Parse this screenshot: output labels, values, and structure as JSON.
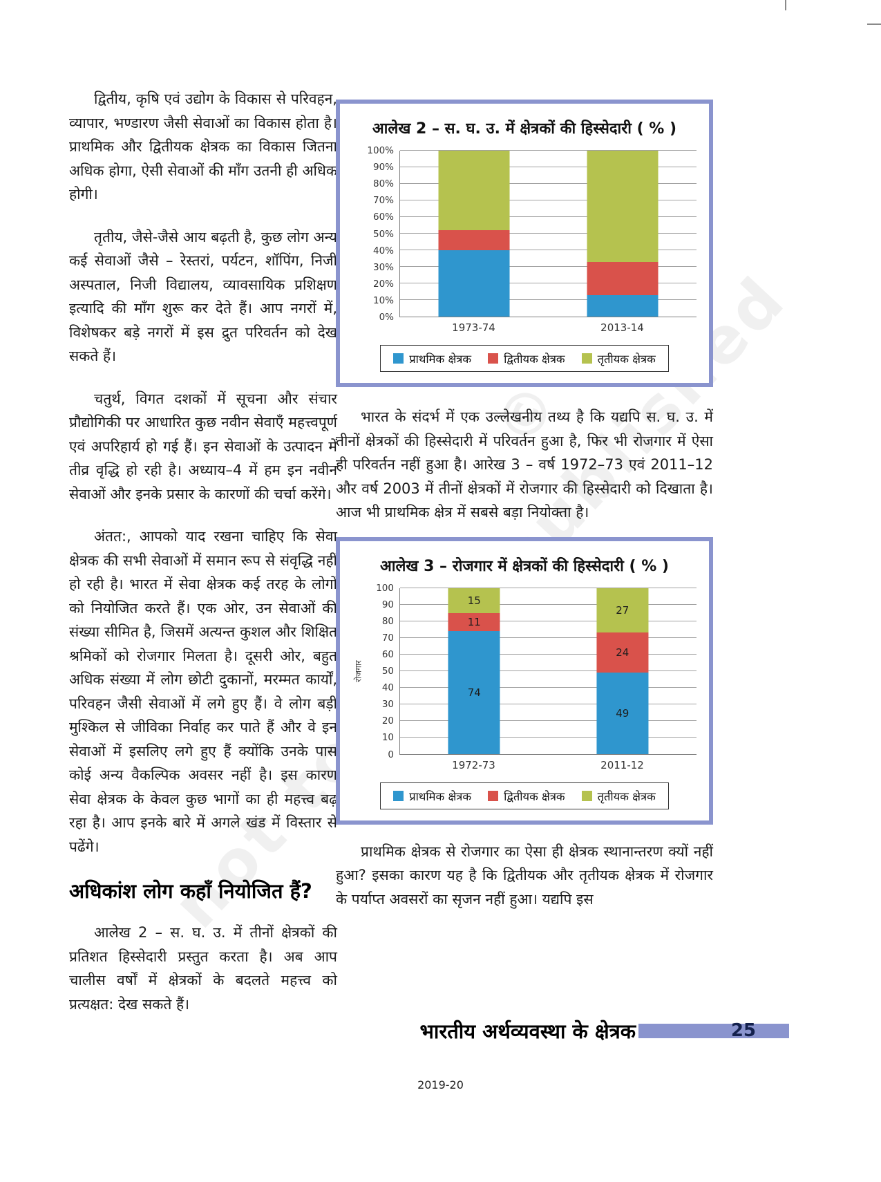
{
  "page": {
    "footer_title": "भारतीय अर्थव्यवस्था के क्षेत्रक",
    "page_number": "25",
    "year_footer": "2019-20",
    "watermark_line1": "© NCERT",
    "watermark_line2": "not to be republished"
  },
  "left_column": {
    "para1": "द्वितीय, कृषि एवं उद्योग के विकास से परिवहन, व्यापार, भण्डारण जैसी सेवाओं का विकास होता है। प्राथमिक और द्वितीयक क्षेत्रक का विकास जितना अधिक होगा, ऐसी सेवाओं की माँग उतनी ही अधिक होगी।",
    "para2": "तृतीय, जैसे-जैसे आय बढ़ती है, कुछ लोग अन्य कई सेवाओं जैसे – रेस्तरां, पर्यटन, शॉपिंग, निजी अस्पताल, निजी विद्यालय, व्यावसायिक प्रशिक्षण इत्यादि की माँग शुरू कर देते हैं। आप नगरों में, विशेषकर बड़े नगरों में इस द्रुत परिवर्तन को देख सकते हैं।",
    "para3": "चतुर्थ, विगत दशकों में सूचना और संचार प्रौद्योगिकी पर आधारित कुछ नवीन सेवाएँ महत्त्वपूर्ण एवं अपरिहार्य हो गई हैं। इन सेवाओं के उत्पादन में तीव्र वृद्धि हो रही है। अध्याय–4 में हम इन नवीन सेवाओं और इनके प्रसार के कारणों की चर्चा करेंगे।",
    "para4": "अंतत:, आपको याद रखना चाहिए कि सेवा क्षेत्रक की सभी सेवाओं में समान रूप से संवृद्धि नहीं हो रही है। भारत में सेवा क्षेत्रक कई तरह के लोगों को नियोजित करते हैं। एक ओर, उन सेवाओं की संख्या सीमित है, जिसमें अत्यन्त कुशल और शिक्षित श्रमिकों को रोजगार मिलता है। दूसरी ओर, बहुत अधिक संख्या में लोग छोटी दुकानों, मरम्मत कार्यों, परिवहन जैसी सेवाओं में लगे हुए हैं। वे लोग बड़ी मुश्किल से जीविका निर्वाह कर पाते हैं और वे इन सेवाओं में इसलिए लगे हुए हैं क्योंकि उनके पास कोई अन्य वैकल्पिक अवसर नहीं है। इस कारण सेवा क्षेत्रक के केवल कुछ भागों का ही महत्त्व बढ़ रहा है। आप इनके बारे में अगले खंड में विस्तार से पढेंगे।",
    "heading": "अधिकांश लोग कहाँ नियोजित हैं?",
    "para5": "आलेख 2 – स. घ. उ. में तीनों क्षेत्रकों की प्रतिशत हिस्सेदारी प्रस्तुत करता है। अब आप चालीस वर्षों में क्षेत्रकों के बदलते महत्त्व को प्रत्यक्षत: देख सकते हैं।"
  },
  "right_column": {
    "para_between": "भारत के संदर्भ में एक उल्लेखनीय तथ्य है कि यद्यपि स. घ. उ. में तीनों क्षेत्रकों की हिस्सेदारी में परिवर्तन हुआ है, फिर भी रोजगार में ऐसा ही परिवर्तन नहीं हुआ है। आरेख 3 – वर्ष 1972–73 एवं 2011–12 और वर्ष 2003 में तीनों क्षेत्रकों में रोजगार की हिस्सेदारी को दिखाता है। आज भी प्राथमिक क्षेत्र में सबसे बड़ा नियोक्ता है।",
    "para_bottom": "प्राथमिक क्षेत्रक से रोजगार का ऐसा ही क्षेत्रक स्थानान्तरण क्यों नहीं हुआ? इसका कारण यह है कि द्वितीयक और तृतीयक क्षेत्रक में रोजगार के पर्याप्त अवसरों का सृजन नहीं हुआ। यद्यपि इस"
  },
  "colors": {
    "primary_blue": "#2f96ce",
    "secondary_red": "#d9524b",
    "tertiary_green": "#b5c24f",
    "chart_border": "#8a94ce",
    "footer_bar": "#8a94ce",
    "gridline": "#a0a0a0"
  },
  "chart_data": [
    {
      "type": "bar",
      "stacked": true,
      "title": "आलेख 2 –  स. घ. उ. में क्षेत्रकों की हिस्सेदारी ( % )",
      "categories": [
        "1973-74",
        "2013-14"
      ],
      "series": [
        {
          "name": "प्राथमिक क्षेत्रक",
          "color": "#2f96ce",
          "values": [
            40,
            13
          ]
        },
        {
          "name": "द्वितीयक क्षेत्रक",
          "color": "#d9524b",
          "values": [
            12,
            20
          ]
        },
        {
          "name": "तृतीयक क्षेत्रक",
          "color": "#b5c24f",
          "values": [
            48,
            67
          ]
        }
      ],
      "xlabel": "",
      "ylabel": "",
      "ylim": [
        0,
        100
      ],
      "ytick_step": 10,
      "ytick_suffix": "%",
      "show_value_labels": false,
      "grid": true,
      "legend_position": "bottom"
    },
    {
      "type": "bar",
      "stacked": true,
      "title": "आलेख 3 –  रोजगार में क्षेत्रकों की हिस्सेदारी ( % )",
      "categories": [
        "1972-73",
        "2011-12"
      ],
      "series": [
        {
          "name": "प्राथमिक क्षेत्रक",
          "color": "#2f96ce",
          "values": [
            74,
            49
          ]
        },
        {
          "name": "द्वितीयक क्षेत्रक",
          "color": "#d9524b",
          "values": [
            11,
            24
          ]
        },
        {
          "name": "तृतीयक क्षेत्रक",
          "color": "#b5c24f",
          "values": [
            15,
            27
          ]
        }
      ],
      "xlabel": "",
      "ylabel": "रोजगार",
      "ylim": [
        0,
        100
      ],
      "ytick_step": 10,
      "ytick_suffix": "",
      "show_value_labels": true,
      "grid": true,
      "legend_position": "bottom"
    }
  ]
}
